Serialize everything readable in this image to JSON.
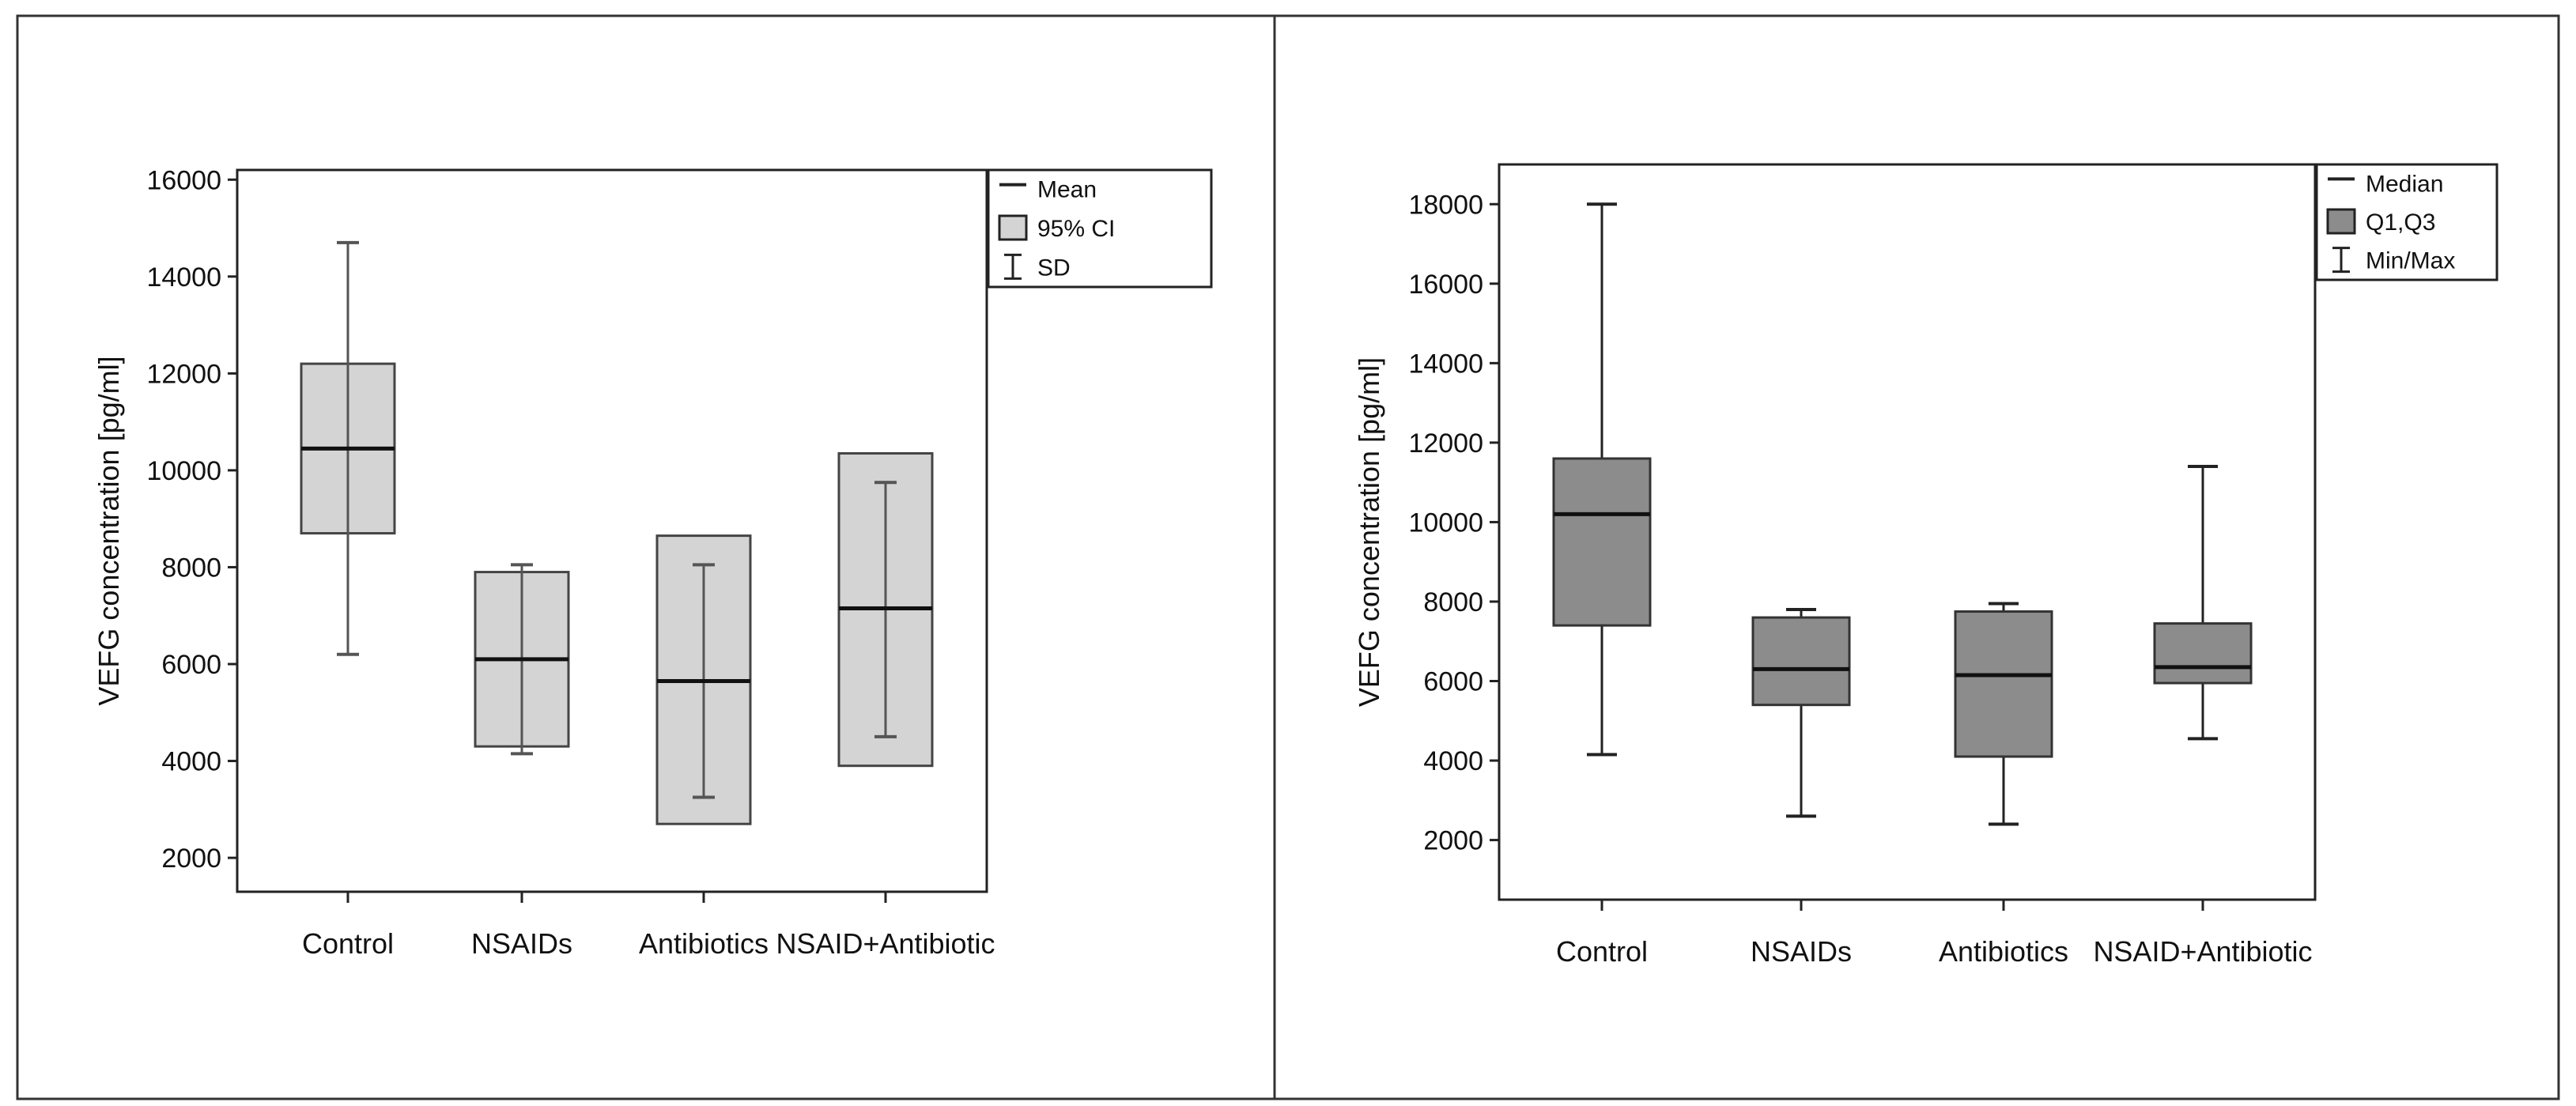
{
  "chart_data": [
    {
      "type": "box",
      "ylabel": "VEFG concentration [pg/ml]",
      "ylim": [
        1300,
        16200
      ],
      "yticks": [
        2000,
        4000,
        6000,
        8000,
        10000,
        12000,
        14000,
        16000
      ],
      "categories": [
        "Control",
        "NSAIDs",
        "Antibiotics",
        "NSAID+Antibiotic"
      ],
      "legend": {
        "position": "top-right",
        "entries": [
          {
            "kind": "line",
            "label": "Mean"
          },
          {
            "kind": "box",
            "label": "95% CI"
          },
          {
            "kind": "whisker",
            "label": "SD"
          }
        ]
      },
      "box_color": "#d4d4d4",
      "series": [
        {
          "category": "Control",
          "mean": 10450,
          "ci_low": 8700,
          "ci_high": 12200,
          "sd_low": 6200,
          "sd_high": 14700
        },
        {
          "category": "NSAIDs",
          "mean": 6100,
          "ci_low": 4300,
          "ci_high": 7900,
          "sd_low": 4150,
          "sd_high": 8050
        },
        {
          "category": "Antibiotics",
          "mean": 5650,
          "ci_low": 2700,
          "ci_high": 8650,
          "sd_low": 3250,
          "sd_high": 8050
        },
        {
          "category": "NSAID+Antibiotic",
          "mean": 7150,
          "ci_low": 3900,
          "ci_high": 10350,
          "sd_low": 4500,
          "sd_high": 9750
        }
      ]
    },
    {
      "type": "box",
      "ylabel": "VEFG concentration [pg/ml]",
      "ylim": [
        500,
        19000
      ],
      "yticks": [
        2000,
        4000,
        6000,
        8000,
        10000,
        12000,
        14000,
        16000,
        18000
      ],
      "categories": [
        "Control",
        "NSAIDs",
        "Antibiotics",
        "NSAID+Antibiotic"
      ],
      "legend": {
        "position": "top-right",
        "entries": [
          {
            "kind": "line",
            "label": "Median"
          },
          {
            "kind": "box",
            "label": "Q1,Q3"
          },
          {
            "kind": "whisker",
            "label": "Min/Max"
          }
        ]
      },
      "box_color": "#8c8c8c",
      "series": [
        {
          "category": "Control",
          "median": 10200,
          "q1": 7400,
          "q3": 11600,
          "min": 4150,
          "max": 18000
        },
        {
          "category": "NSAIDs",
          "median": 6300,
          "q1": 5400,
          "q3": 7600,
          "min": 2600,
          "max": 7800
        },
        {
          "category": "Antibiotics",
          "median": 6150,
          "q1": 4100,
          "q3": 7750,
          "min": 2400,
          "max": 7950
        },
        {
          "category": "NSAID+Antibiotic",
          "median": 6350,
          "q1": 5950,
          "q3": 7450,
          "min": 4550,
          "max": 11400
        }
      ]
    }
  ]
}
